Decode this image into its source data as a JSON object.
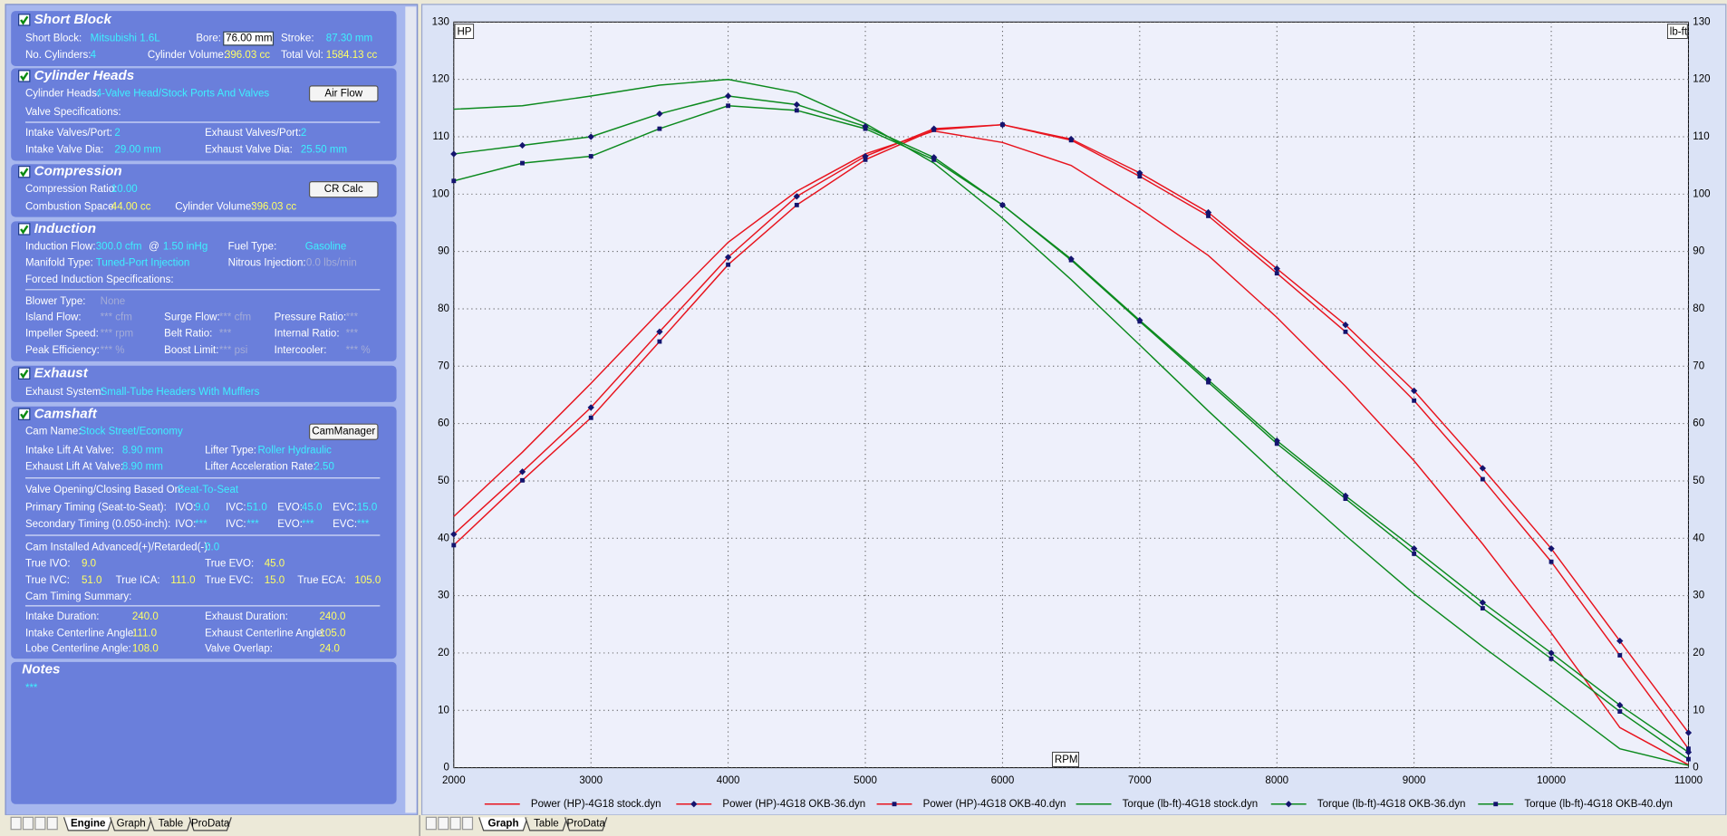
{
  "panel": {
    "sections": [
      {
        "title": "Short Block",
        "rows": [
          [
            "Short Block:",
            "Mitsubishi 1.6L",
            "Bore:",
            "76.00 mm",
            "Stroke:",
            "87.30 mm"
          ],
          [
            "No. Cylinders:",
            "4",
            "Cylinder Volume:",
            "396.03 cc",
            "Total Vol:",
            "1584.13 cc"
          ]
        ]
      },
      {
        "title": "Cylinder Heads",
        "rows": [
          [
            "Cylinder Heads:",
            "4-Valve Head/Stock Ports And Valves",
            "Air Flow"
          ],
          [
            "Valve Specifications:"
          ],
          [
            "Intake Valves/Port:",
            "2",
            "Exhaust Valves/Port:",
            "2"
          ],
          [
            "Intake Valve Dia:",
            "29.00 mm",
            "Exhaust Valve Dia:",
            "25.50 mm"
          ]
        ]
      },
      {
        "title": "Compression",
        "rows": [
          [
            "Compression Ratio:",
            "10.00",
            "CR Calc"
          ],
          [
            "Combustion Space:",
            "44.00 cc",
            "Cylinder Volume:",
            "396.03 cc"
          ]
        ]
      },
      {
        "title": "Induction",
        "rows": [
          [
            "Induction Flow:",
            "300.0 cfm",
            "@",
            "1.50 inHg",
            "Fuel Type:",
            "Gasoline"
          ],
          [
            "Manifold Type:",
            "Tuned-Port Injection",
            "Nitrous Injection:",
            "0.0 lbs/min"
          ],
          [
            "Forced Induction Specifications:"
          ],
          [
            "Blower Type:",
            "None"
          ],
          [
            "Island Flow:",
            "*** cfm",
            "Surge Flow:",
            "*** cfm",
            "Pressure Ratio:",
            "***"
          ],
          [
            "Impeller Speed:",
            "*** rpm",
            "Belt Ratio:",
            "***",
            "Internal Ratio:",
            "***"
          ],
          [
            "Peak Efficiency:",
            "*** %",
            "Boost Limit:",
            "*** psi",
            "Intercooler:",
            "*** %"
          ]
        ]
      },
      {
        "title": "Exhaust",
        "rows": [
          [
            "Exhaust System:",
            "Small-Tube Headers With Mufflers"
          ]
        ]
      },
      {
        "title": "Camshaft",
        "rows": [
          [
            "Cam Name:",
            "Stock Street/Economy",
            "CamManager"
          ],
          [
            "Intake Lift At Valve:",
            "8.90 mm",
            "Lifter Type:",
            "Roller Hydraulic"
          ],
          [
            "Exhaust Lift At Valve:",
            "8.90 mm",
            "Lifter Acceleration Rate:",
            "2.50"
          ],
          [
            "Valve Opening/Closing Based On:",
            "Seat-To-Seat"
          ],
          [
            "Primary Timing (Seat-to-Seat):",
            "IVO:",
            "9.0",
            "IVC:",
            "51.0",
            "EVO:",
            "45.0",
            "EVC:",
            "15.0"
          ],
          [
            "Secondary Timing (0.050-inch):",
            "IVO:",
            "***",
            "IVC:",
            "***",
            "EVO:",
            "***",
            "EVC:",
            "***"
          ],
          [
            "Cam Installed Advanced(+)/Retarded(-):",
            "0.0"
          ],
          [
            "True IVO:",
            "9.0",
            "True EVO:",
            "45.0"
          ],
          [
            "True IVC:",
            "51.0",
            "True ICA:",
            "111.0",
            "True EVC:",
            "15.0",
            "True ECA:",
            "105.0"
          ],
          [
            "Cam Timing Summary:"
          ],
          [
            "Intake Duration:",
            "240.0",
            "Exhaust Duration:",
            "240.0"
          ],
          [
            "Intake Centerline Angle:",
            "111.0",
            "Exhaust Centerline Angle:",
            "105.0"
          ],
          [
            "Lobe Centerline Angle:",
            "108.0",
            "Valve Overlap:",
            "24.0"
          ]
        ]
      },
      {
        "title": "Notes",
        "rows": [
          [
            "***"
          ]
        ]
      }
    ]
  },
  "tabs": {
    "left": [
      "Engine",
      "Graph",
      "Table",
      "ProData"
    ],
    "right": [
      "Graph",
      "Table",
      "ProData"
    ]
  },
  "chart_data": {
    "type": "line",
    "xlabel": "RPM",
    "ylabel": "HP",
    "y2label": "lb-ft",
    "x": [
      2000,
      2500,
      3000,
      3500,
      4000,
      4500,
      5000,
      5500,
      6000,
      6500,
      7000,
      7500,
      8000,
      8500,
      9000,
      9500,
      10000,
      10500,
      11000
    ],
    "xlim": [
      2000,
      11000
    ],
    "xticks": [
      2000,
      3000,
      4000,
      5000,
      6000,
      7000,
      8000,
      9000,
      10000,
      11000
    ],
    "ylim": [
      0,
      130
    ],
    "yticks": [
      0,
      10,
      20,
      30,
      40,
      50,
      60,
      70,
      80,
      90,
      100,
      110,
      120,
      130
    ],
    "y2lim": [
      0,
      130
    ],
    "y2ticks": [
      0,
      10,
      20,
      30,
      40,
      50,
      60,
      70,
      80,
      90,
      100,
      110,
      120,
      130
    ],
    "grid": true,
    "series": [
      {
        "name": "Power (HP)-4G18 stock.dyn",
        "color": "#e8141e",
        "marker": "none",
        "values": [
          43.8,
          55,
          67,
          79.5,
          91.6,
          100.5,
          107,
          111,
          109,
          105,
          97.5,
          89.3,
          78.5,
          66.5,
          53.5,
          39,
          23.5,
          7,
          0.5
        ]
      },
      {
        "name": "Power (HP)-4G18 OKB-36.dyn",
        "color": "#e8141e",
        "marker": "diamond",
        "values": [
          40.7,
          51.6,
          62.8,
          76,
          89,
          99.6,
          106.6,
          111.4,
          112.1,
          109.6,
          103.7,
          96.8,
          87,
          77.2,
          65.7,
          52.2,
          38.2,
          22.1,
          6.1
        ]
      },
      {
        "name": "Power (HP)-4G18 OKB-40.dyn",
        "color": "#e8141e",
        "marker": "square",
        "values": [
          38.8,
          50.1,
          61,
          74.3,
          87.7,
          98.1,
          106,
          111.2,
          112.1,
          109.4,
          103.1,
          96.2,
          86.2,
          76,
          64,
          50.3,
          35.9,
          19.6,
          3.3
        ]
      },
      {
        "name": "Torque (lb-ft)-4G18 stock.dyn",
        "color": "#0c8a1e",
        "marker": "none",
        "axis": "y2",
        "values": [
          114.8,
          115.4,
          117.1,
          119,
          120,
          117.7,
          112.3,
          105.4,
          95.8,
          85.1,
          73.7,
          62.2,
          51.1,
          40.5,
          30.3,
          21.1,
          12.3,
          3.3,
          0.4
        ]
      },
      {
        "name": "Torque (lb-ft)-4G18 OKB-36.dyn",
        "color": "#0c8a1e",
        "marker": "diamond",
        "axis": "y2",
        "values": [
          107,
          108.5,
          110,
          114,
          117.1,
          115.6,
          111.8,
          106.4,
          98.1,
          88.7,
          78,
          67.6,
          57,
          47.4,
          38.2,
          28.8,
          20,
          10.9,
          2.7
        ]
      },
      {
        "name": "Torque (lb-ft)-4G18 OKB-40.dyn",
        "color": "#0c8a1e",
        "marker": "square",
        "axis": "y2",
        "values": [
          102.3,
          105.4,
          106.6,
          111.4,
          115.4,
          114.6,
          111.4,
          106,
          98.1,
          88.5,
          77.8,
          67.2,
          56.5,
          46.9,
          37.3,
          27.8,
          19,
          9.8,
          1.5
        ]
      }
    ]
  }
}
